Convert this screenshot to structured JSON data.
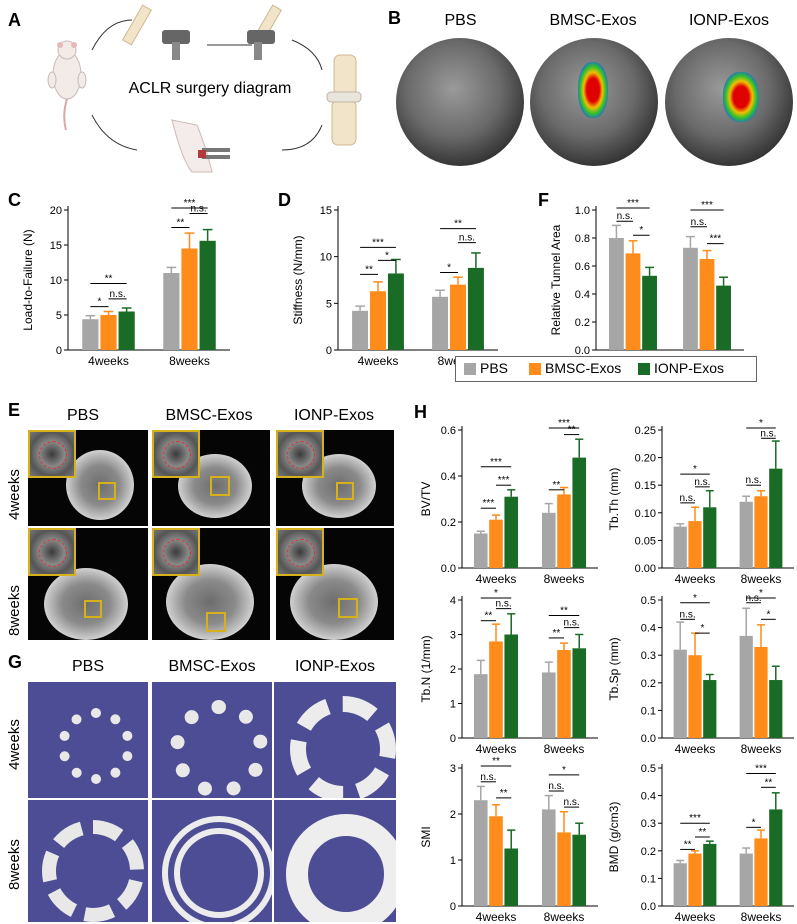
{
  "panels": {
    "A": "A",
    "B": "B",
    "C": "C",
    "D": "D",
    "E": "E",
    "F": "F",
    "G": "G",
    "H": "H"
  },
  "panel_a": {
    "caption": "ACLR surgery diagram"
  },
  "panel_b": {
    "labels": [
      "PBS",
      "BMSC-Exos",
      "IONP-Exos"
    ]
  },
  "groups": [
    "PBS",
    "BMSC-Exos",
    "IONP-Exos"
  ],
  "colors": {
    "PBS": "#a6a6a6",
    "BMSC-Exos": "#ff8c1a",
    "IONP-Exos": "#1a6b25"
  },
  "timepoints": [
    "4weeks",
    "8weeks"
  ],
  "panel_e": {
    "cols": [
      "PBS",
      "BMSC-Exos",
      "IONP-Exos"
    ],
    "rows": [
      "4weeks",
      "8weeks"
    ]
  },
  "panel_g": {
    "cols": [
      "PBS",
      "BMSC-Exos",
      "IONP-Exos"
    ],
    "rows": [
      "4weeks",
      "8weeks"
    ]
  },
  "legend": {
    "items": [
      "PBS",
      "BMSC-Exos",
      "IONP-Exos"
    ]
  },
  "chart_data": [
    {
      "id": "C",
      "type": "bar",
      "ylabel": "Load-to-Failure (N)",
      "ylim": [
        0,
        20
      ],
      "yticks": [
        0,
        5,
        10,
        15,
        20
      ],
      "categories": [
        "4weeks",
        "8weeks"
      ],
      "series": [
        {
          "name": "PBS",
          "values": [
            4.4,
            11.0
          ],
          "err": [
            0.5,
            0.8
          ]
        },
        {
          "name": "BMSC-Exos",
          "values": [
            5.0,
            14.5
          ],
          "err": [
            0.5,
            2.2
          ]
        },
        {
          "name": "IONP-Exos",
          "values": [
            5.5,
            15.6
          ],
          "err": [
            0.5,
            1.6
          ]
        }
      ],
      "brackets": [
        {
          "t": 0,
          "a": 0,
          "b": 1,
          "y": 6.2,
          "label": "*"
        },
        {
          "t": 0,
          "a": 1,
          "b": 2,
          "y": 7.3,
          "label": "n.s."
        },
        {
          "t": 0,
          "a": 0,
          "b": 2,
          "y": 9.5,
          "label": "**"
        },
        {
          "t": 1,
          "a": 0,
          "b": 1,
          "y": 17.5,
          "label": "**"
        },
        {
          "t": 1,
          "a": 1,
          "b": 2,
          "y": 19.5,
          "label": "n.s."
        },
        {
          "t": 1,
          "a": 0,
          "b": 2,
          "y": 22.0,
          "label": "***"
        }
      ]
    },
    {
      "id": "D",
      "type": "bar",
      "ylabel": "Stiffness (N/mm)",
      "ylim": [
        0,
        15
      ],
      "yticks": [
        0,
        5,
        10,
        15
      ],
      "categories": [
        "4weeks",
        "8weeks"
      ],
      "series": [
        {
          "name": "PBS",
          "values": [
            4.2,
            5.7
          ],
          "err": [
            0.5,
            0.7
          ]
        },
        {
          "name": "BMSC-Exos",
          "values": [
            6.3,
            7.0
          ],
          "err": [
            1.0,
            0.8
          ]
        },
        {
          "name": "IONP-Exos",
          "values": [
            8.2,
            8.8
          ],
          "err": [
            1.5,
            1.6
          ]
        }
      ],
      "brackets": [
        {
          "t": 0,
          "a": 0,
          "b": 1,
          "y": 8.1,
          "label": "**"
        },
        {
          "t": 0,
          "a": 1,
          "b": 2,
          "y": 9.6,
          "label": "*"
        },
        {
          "t": 0,
          "a": 0,
          "b": 2,
          "y": 11.0,
          "label": "***"
        },
        {
          "t": 1,
          "a": 0,
          "b": 1,
          "y": 8.3,
          "label": "*"
        },
        {
          "t": 1,
          "a": 1,
          "b": 2,
          "y": 11.5,
          "label": "n.s."
        },
        {
          "t": 1,
          "a": 0,
          "b": 2,
          "y": 13.0,
          "label": "**"
        }
      ]
    },
    {
      "id": "F",
      "type": "bar",
      "ylabel": "Relative Tunnel Area",
      "ylim": [
        0,
        1.0
      ],
      "yticks": [
        "0.0",
        "0.2",
        "0.4",
        "0.6",
        "0.8",
        "1.0"
      ],
      "categories": [
        "4weeks",
        "8weeks"
      ],
      "series": [
        {
          "name": "PBS",
          "values": [
            0.8,
            0.73
          ],
          "err": [
            0.09,
            0.08
          ]
        },
        {
          "name": "BMSC-Exos",
          "values": [
            0.69,
            0.65
          ],
          "err": [
            0.09,
            0.06
          ]
        },
        {
          "name": "IONP-Exos",
          "values": [
            0.53,
            0.46
          ],
          "err": [
            0.06,
            0.06
          ]
        }
      ],
      "brackets": [
        {
          "t": 0,
          "a": 0,
          "b": 1,
          "y": 0.92,
          "label": "n.s."
        },
        {
          "t": 0,
          "a": 1,
          "b": 2,
          "y": 0.82,
          "label": "*"
        },
        {
          "t": 0,
          "a": 0,
          "b": 2,
          "y": 1.04,
          "label": "***"
        },
        {
          "t": 1,
          "a": 0,
          "b": 1,
          "y": 0.88,
          "label": "n.s."
        },
        {
          "t": 1,
          "a": 1,
          "b": 2,
          "y": 0.76,
          "label": "***"
        },
        {
          "t": 1,
          "a": 0,
          "b": 2,
          "y": 1.0,
          "label": "***"
        }
      ]
    },
    {
      "id": "H1",
      "type": "bar",
      "ylabel": "BV/TV",
      "ylim": [
        0,
        0.6
      ],
      "yticks": [
        "0.0",
        "0.2",
        "0.4",
        "0.6"
      ],
      "categories": [
        "4weeks",
        "8weeks"
      ],
      "series": [
        {
          "name": "PBS",
          "values": [
            0.15,
            0.24
          ],
          "err": [
            0.01,
            0.04
          ]
        },
        {
          "name": "BMSC-Exos",
          "values": [
            0.21,
            0.32
          ],
          "err": [
            0.02,
            0.03
          ]
        },
        {
          "name": "IONP-Exos",
          "values": [
            0.31,
            0.48
          ],
          "err": [
            0.03,
            0.08
          ]
        }
      ],
      "brackets": [
        {
          "t": 0,
          "a": 0,
          "b": 1,
          "y": 0.26,
          "label": "***"
        },
        {
          "t": 0,
          "a": 1,
          "b": 2,
          "y": 0.36,
          "label": "***"
        },
        {
          "t": 0,
          "a": 0,
          "b": 2,
          "y": 0.44,
          "label": "***"
        },
        {
          "t": 1,
          "a": 0,
          "b": 1,
          "y": 0.34,
          "label": "**"
        },
        {
          "t": 1,
          "a": 1,
          "b": 2,
          "y": 0.58,
          "label": "**"
        },
        {
          "t": 1,
          "a": 0,
          "b": 2,
          "y": 0.64,
          "label": "***"
        }
      ]
    },
    {
      "id": "H2",
      "type": "bar",
      "ylabel": "Tb.Th (mm)",
      "ylim": [
        0,
        0.25
      ],
      "yticks": [
        "0.00",
        "0.05",
        "0.10",
        "0.15",
        "0.20",
        "0.25"
      ],
      "categories": [
        "4weeks",
        "8weeks"
      ],
      "series": [
        {
          "name": "PBS",
          "values": [
            0.075,
            0.12
          ],
          "err": [
            0.005,
            0.01
          ]
        },
        {
          "name": "BMSC-Exos",
          "values": [
            0.085,
            0.13
          ],
          "err": [
            0.025,
            0.01
          ]
        },
        {
          "name": "IONP-Exos",
          "values": [
            0.11,
            0.18
          ],
          "err": [
            0.03,
            0.05
          ]
        }
      ],
      "brackets": [
        {
          "t": 0,
          "a": 0,
          "b": 1,
          "y": 0.118,
          "label": "n.s."
        },
        {
          "t": 0,
          "a": 1,
          "b": 2,
          "y": 0.147,
          "label": "n.s."
        },
        {
          "t": 0,
          "a": 0,
          "b": 2,
          "y": 0.17,
          "label": "*"
        },
        {
          "t": 1,
          "a": 0,
          "b": 1,
          "y": 0.15,
          "label": "n.s."
        },
        {
          "t": 1,
          "a": 1,
          "b": 2,
          "y": 0.235,
          "label": "n.s."
        },
        {
          "t": 1,
          "a": 0,
          "b": 2,
          "y": 0.265,
          "label": "*"
        }
      ]
    },
    {
      "id": "H3",
      "type": "bar",
      "ylabel": "Tb.N (1/mm)",
      "ylim": [
        0,
        4
      ],
      "yticks": [
        0,
        1,
        2,
        3,
        4
      ],
      "categories": [
        "4weeks",
        "8weeks"
      ],
      "series": [
        {
          "name": "PBS",
          "values": [
            1.85,
            1.9
          ],
          "err": [
            0.4,
            0.3
          ]
        },
        {
          "name": "BMSC-Exos",
          "values": [
            2.8,
            2.55
          ],
          "err": [
            0.5,
            0.2
          ]
        },
        {
          "name": "IONP-Exos",
          "values": [
            3.0,
            2.6
          ],
          "err": [
            0.6,
            0.4
          ]
        }
      ],
      "brackets": [
        {
          "t": 0,
          "a": 0,
          "b": 1,
          "y": 3.4,
          "label": "**"
        },
        {
          "t": 0,
          "a": 1,
          "b": 2,
          "y": 3.75,
          "label": "n.s."
        },
        {
          "t": 0,
          "a": 0,
          "b": 2,
          "y": 4.1,
          "label": "*"
        },
        {
          "t": 1,
          "a": 0,
          "b": 1,
          "y": 2.9,
          "label": "**"
        },
        {
          "t": 1,
          "a": 1,
          "b": 2,
          "y": 3.2,
          "label": "n.s."
        },
        {
          "t": 1,
          "a": 0,
          "b": 2,
          "y": 3.55,
          "label": "**"
        }
      ]
    },
    {
      "id": "H4",
      "type": "bar",
      "ylabel": "Tb.Sp (mm)",
      "ylim": [
        0,
        0.5
      ],
      "yticks": [
        "0.0",
        "0.1",
        "0.2",
        "0.3",
        "0.4",
        "0.5"
      ],
      "categories": [
        "4weeks",
        "8weeks"
      ],
      "series": [
        {
          "name": "PBS",
          "values": [
            0.32,
            0.37
          ],
          "err": [
            0.1,
            0.1
          ]
        },
        {
          "name": "BMSC-Exos",
          "values": [
            0.3,
            0.33
          ],
          "err": [
            0.08,
            0.08
          ]
        },
        {
          "name": "IONP-Exos",
          "values": [
            0.21,
            0.21
          ],
          "err": [
            0.02,
            0.05
          ]
        }
      ],
      "brackets": [
        {
          "t": 0,
          "a": 0,
          "b": 1,
          "y": 0.43,
          "label": "n.s."
        },
        {
          "t": 0,
          "a": 1,
          "b": 2,
          "y": 0.38,
          "label": "*"
        },
        {
          "t": 0,
          "a": 0,
          "b": 2,
          "y": 0.49,
          "label": "*"
        },
        {
          "t": 1,
          "a": 0,
          "b": 1,
          "y": 0.49,
          "label": "n.s."
        },
        {
          "t": 1,
          "a": 1,
          "b": 2,
          "y": 0.43,
          "label": "*"
        },
        {
          "t": 1,
          "a": 0,
          "b": 2,
          "y": 0.55,
          "label": "*"
        }
      ]
    },
    {
      "id": "H5",
      "type": "bar",
      "ylabel": "SMI",
      "ylim": [
        0,
        3
      ],
      "yticks": [
        0,
        1,
        2,
        3
      ],
      "categories": [
        "4weeks",
        "8weeks"
      ],
      "series": [
        {
          "name": "PBS",
          "values": [
            2.3,
            2.1
          ],
          "err": [
            0.3,
            0.3
          ]
        },
        {
          "name": "BMSC-Exos",
          "values": [
            1.95,
            1.6
          ],
          "err": [
            0.25,
            0.45
          ]
        },
        {
          "name": "IONP-Exos",
          "values": [
            1.25,
            1.55
          ],
          "err": [
            0.4,
            0.25
          ]
        }
      ],
      "brackets": [
        {
          "t": 0,
          "a": 0,
          "b": 1,
          "y": 2.7,
          "label": "n.s."
        },
        {
          "t": 0,
          "a": 1,
          "b": 2,
          "y": 2.35,
          "label": "**"
        },
        {
          "t": 0,
          "a": 0,
          "b": 2,
          "y": 3.1,
          "label": "**"
        },
        {
          "t": 1,
          "a": 0,
          "b": 1,
          "y": 2.5,
          "label": "n.s."
        },
        {
          "t": 1,
          "a": 1,
          "b": 2,
          "y": 2.15,
          "label": "n.s."
        },
        {
          "t": 1,
          "a": 0,
          "b": 2,
          "y": 2.85,
          "label": "*"
        }
      ]
    },
    {
      "id": "H6",
      "type": "bar",
      "ylabel": "BMD (g/cm3)",
      "ylim": [
        0,
        0.5
      ],
      "yticks": [
        "0.0",
        "0.1",
        "0.2",
        "0.3",
        "0.4",
        "0.5"
      ],
      "categories": [
        "4weeks",
        "8weeks"
      ],
      "series": [
        {
          "name": "PBS",
          "values": [
            0.155,
            0.19
          ],
          "err": [
            0.01,
            0.02
          ]
        },
        {
          "name": "BMSC-Exos",
          "values": [
            0.19,
            0.245
          ],
          "err": [
            0.01,
            0.03
          ]
        },
        {
          "name": "IONP-Exos",
          "values": [
            0.225,
            0.35
          ],
          "err": [
            0.01,
            0.06
          ]
        }
      ],
      "brackets": [
        {
          "t": 0,
          "a": 0,
          "b": 1,
          "y": 0.205,
          "label": "**"
        },
        {
          "t": 0,
          "a": 1,
          "b": 2,
          "y": 0.25,
          "label": "**"
        },
        {
          "t": 0,
          "a": 0,
          "b": 2,
          "y": 0.3,
          "label": "***"
        },
        {
          "t": 1,
          "a": 0,
          "b": 1,
          "y": 0.285,
          "label": "*"
        },
        {
          "t": 1,
          "a": 1,
          "b": 2,
          "y": 0.43,
          "label": "**"
        },
        {
          "t": 1,
          "a": 0,
          "b": 2,
          "y": 0.48,
          "label": "***"
        }
      ]
    }
  ]
}
